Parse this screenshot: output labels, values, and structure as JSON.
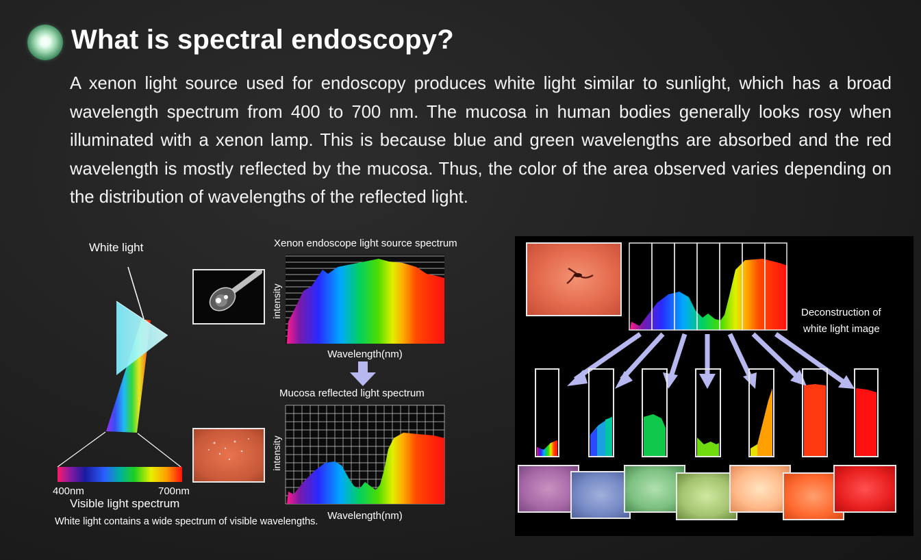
{
  "title": "What is spectral endoscopy?",
  "intro": "A xenon light source used for endoscopy produces white light similar to sunlight, which has a broad wavelength spectrum from 400 to 700 nm. The mucosa in human bodies generally looks rosy when illuminated with a xenon lamp. This is because blue and green wavelengths are absorbed and the red wavelength is mostly reflected by the mucosa. Thus, the color of the area observed varies depending on the distribution of wavelengths of the reflected light.",
  "prism": {
    "white_light_label": "White light",
    "scale_min": "400nm",
    "scale_max": "700nm",
    "spectrum_label": "Visible light spectrum",
    "caption": "White light contains a wide spectrum of visible wavelengths."
  },
  "xenon_chart": {
    "title": "Xenon endoscope light source spectrum",
    "ylabel": "intensity",
    "xlabel": "Wavelength(nm)"
  },
  "mucosa_chart": {
    "title": "Mucosa reflected light spectrum",
    "ylabel": "intensity",
    "xlabel": "Wavelength(nm)"
  },
  "deconstruction": {
    "label_line1": "Deconstruction of",
    "label_line2": "white light image",
    "band_count": 7
  },
  "colors": {
    "background": "#202020",
    "arrow": "#b8b8f0",
    "photo_border": "#e8e8e8",
    "title_bullet": "#3f8a5e"
  }
}
